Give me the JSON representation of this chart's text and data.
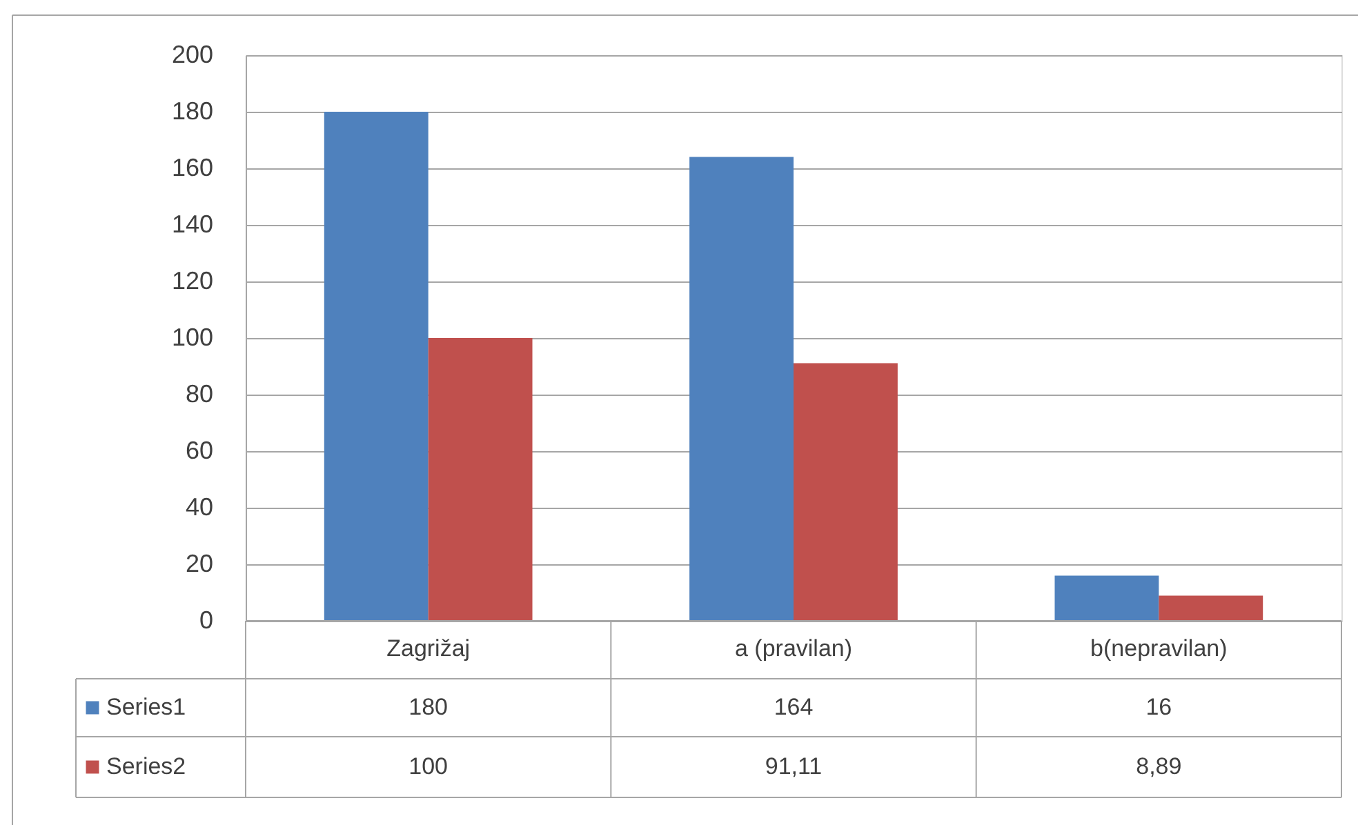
{
  "chart_data": {
    "type": "bar",
    "categories": [
      "Zagrižaj",
      "a (pravilan)",
      "b(nepravilan)"
    ],
    "series": [
      {
        "name": "Series1",
        "color": "#4f81bd",
        "values": [
          180,
          164,
          16
        ],
        "value_labels": [
          "180",
          "164",
          "16"
        ]
      },
      {
        "name": "Series2",
        "color": "#c0504d",
        "values": [
          100,
          91.11,
          8.89
        ],
        "value_labels": [
          "100",
          "91,11",
          "8,89"
        ]
      }
    ],
    "ylim": [
      0,
      200
    ],
    "yticks": [
      0,
      20,
      40,
      60,
      80,
      100,
      120,
      140,
      160,
      180,
      200
    ],
    "grid": "y",
    "legend": "bottom"
  }
}
